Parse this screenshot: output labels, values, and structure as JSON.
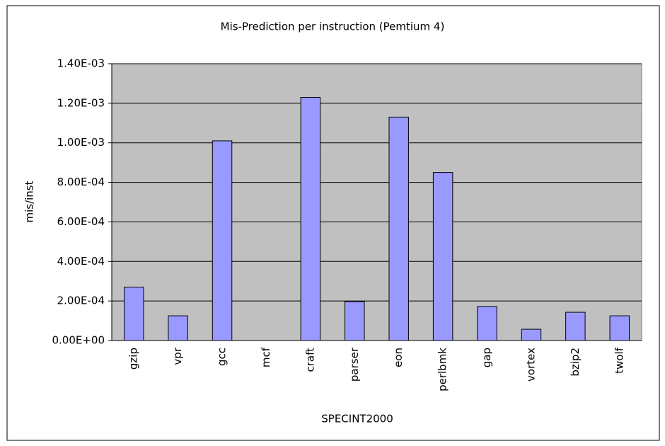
{
  "chart_data": {
    "type": "bar",
    "title": "Mis-Prediction per instruction (Pemtium 4)",
    "x_label": "SPECINT2000",
    "y_label": "mis/inst",
    "categories": [
      "gzip",
      "vpr",
      "gcc",
      "mcf",
      "craft",
      "parser",
      "eon",
      "perlbmk",
      "gap",
      "vortex",
      "bzip2",
      "twolf"
    ],
    "values": [
      0.00027,
      0.000125,
      0.00101,
      0,
      0.00123,
      0.000197,
      0.00113,
      0.00085,
      0.000172,
      5.7e-05,
      0.000143,
      0.000125
    ],
    "color": "#9999ff",
    "ylim": [
      0,
      0.0014
    ],
    "yticks": [
      {
        "value": 0,
        "label": "0.00E+00"
      },
      {
        "value": 0.0002,
        "label": "2.00E-04"
      },
      {
        "value": 0.0004,
        "label": "4.00E-04"
      },
      {
        "value": 0.0006,
        "label": "6.00E-04"
      },
      {
        "value": 0.0008,
        "label": "8.00E-04"
      },
      {
        "value": 0.001,
        "label": "1.00E-03"
      },
      {
        "value": 0.0012,
        "label": "1.20E-03"
      },
      {
        "value": 0.0014,
        "label": "1.40E-03"
      }
    ],
    "grid": true
  }
}
